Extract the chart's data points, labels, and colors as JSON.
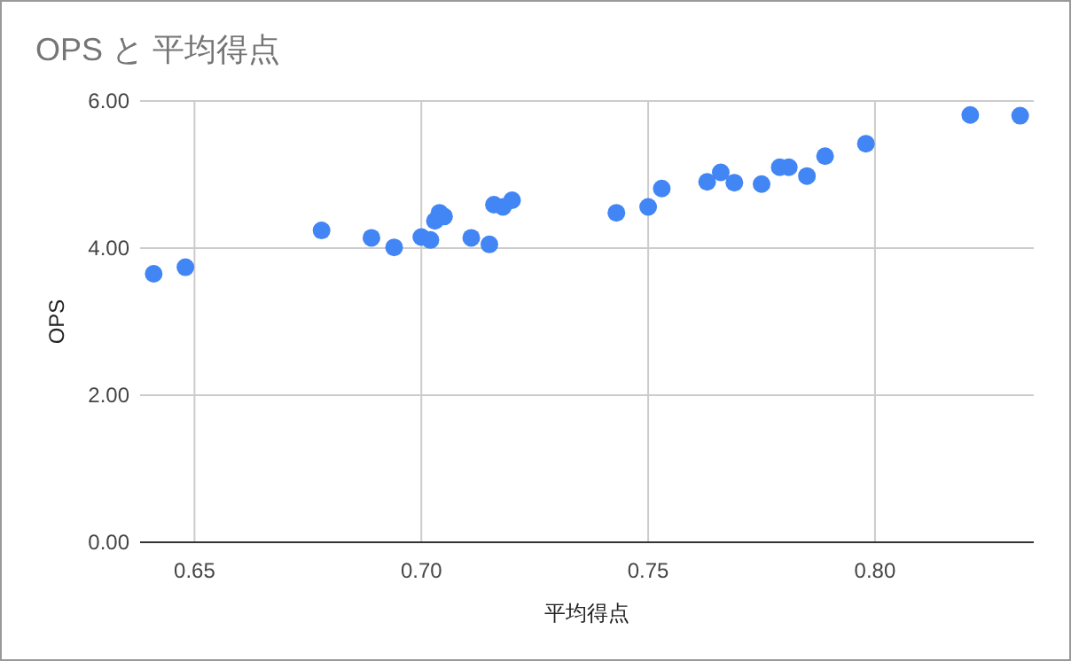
{
  "chart_data": {
    "type": "scatter",
    "title": "OPS と 平均得点",
    "xlabel": "平均得点",
    "ylabel": "OPS",
    "x": [
      0.641,
      0.648,
      0.678,
      0.689,
      0.694,
      0.7,
      0.702,
      0.703,
      0.705,
      0.704,
      0.711,
      0.715,
      0.716,
      0.718,
      0.72,
      0.743,
      0.75,
      0.753,
      0.763,
      0.766,
      0.769,
      0.775,
      0.779,
      0.781,
      0.785,
      0.789,
      0.798,
      0.821,
      0.832
    ],
    "values": [
      3.65,
      3.74,
      4.24,
      4.14,
      4.01,
      4.15,
      4.11,
      4.37,
      4.43,
      4.48,
      4.14,
      4.05,
      4.59,
      4.56,
      4.65,
      4.48,
      4.56,
      4.81,
      4.9,
      5.03,
      4.89,
      4.87,
      5.1,
      5.1,
      4.98,
      5.25,
      5.42,
      5.81,
      5.8
    ],
    "color": "#4285f4",
    "marker": "circle",
    "grid": true,
    "xlim": [
      0.638,
      0.835
    ],
    "xticks": [
      {
        "value": 0.65,
        "label": "0.65"
      },
      {
        "value": 0.7,
        "label": "0.70"
      },
      {
        "value": 0.75,
        "label": "0.75"
      },
      {
        "value": 0.8,
        "label": "0.80"
      }
    ],
    "ylim": [
      0,
      6
    ],
    "yticks": [
      {
        "value": 0,
        "label": "0.00"
      },
      {
        "value": 2,
        "label": "2.00"
      },
      {
        "value": 4,
        "label": "4.00"
      },
      {
        "value": 6,
        "label": "6.00"
      }
    ]
  }
}
